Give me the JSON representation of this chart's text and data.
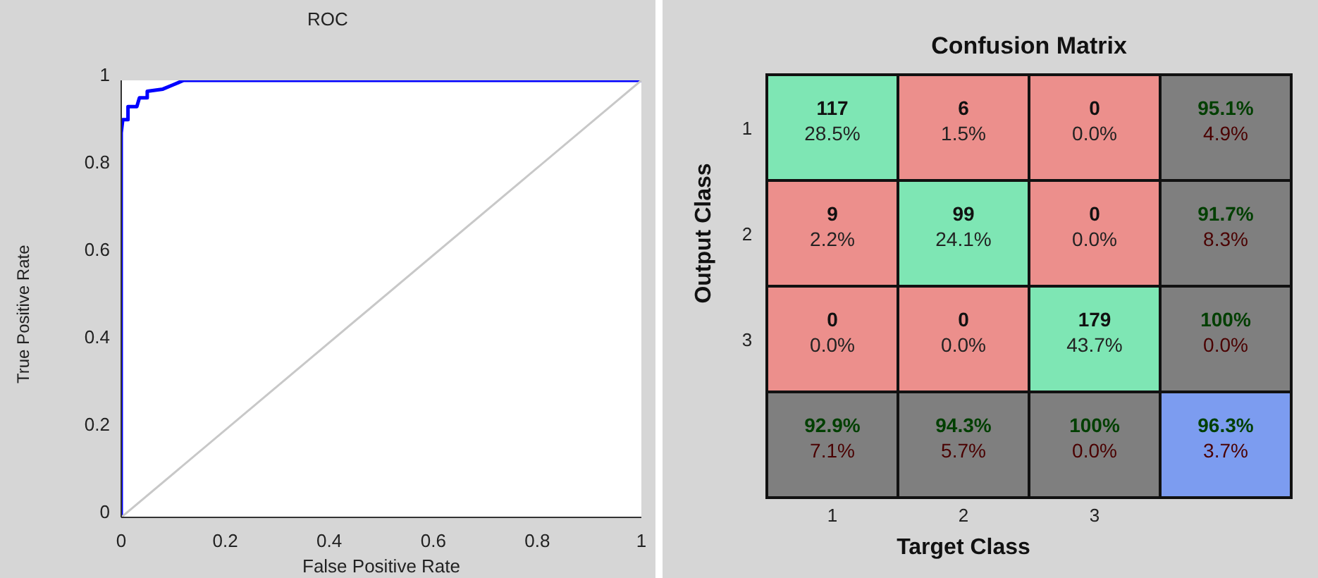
{
  "chart_data": [
    {
      "type": "line",
      "title": "ROC",
      "xlabel": "False Positive Rate",
      "ylabel": "True Positive Rate",
      "xlim": [
        0,
        1
      ],
      "ylim": [
        0,
        1
      ],
      "xticks": [
        0,
        0.2,
        0.4,
        0.6,
        0.8,
        1
      ],
      "yticks": [
        0,
        0.2,
        0.4,
        0.6,
        0.8,
        1
      ],
      "grid": false,
      "marker": "none",
      "line_style": "solid",
      "series": [
        {
          "color": "#0000ff",
          "x": [
            0,
            0,
            0,
            0.003,
            0.013,
            0.013,
            0.03,
            0.035,
            0.05,
            0.05,
            0.08,
            0.1,
            0.12,
            1
          ],
          "values": [
            0,
            0.77,
            0.88,
            0.91,
            0.91,
            0.94,
            0.94,
            0.96,
            0.96,
            0.975,
            0.98,
            0.99,
            1,
            1
          ]
        },
        {
          "color": "#c8c8c8",
          "x": [
            0,
            1
          ],
          "values": [
            0,
            1
          ]
        }
      ]
    },
    {
      "type": "heatmap",
      "title": "Confusion Matrix",
      "xlabel": "Target Class",
      "ylabel": "Output Class",
      "categories": [
        "1",
        "2",
        "3",
        null
      ],
      "y_categories": [
        "1",
        "2",
        "3",
        null
      ],
      "cells": [
        [
          117,
          6,
          0,
          95.1
        ],
        [
          9,
          99,
          0,
          91.7
        ],
        [
          0,
          0,
          179,
          100
        ],
        [
          92.9,
          94.3,
          100,
          96.3
        ]
      ],
      "cell_labels": [
        [
          "117",
          "6",
          "0",
          "95.1%"
        ],
        [
          "9",
          "99",
          "0",
          "91.7%"
        ],
        [
          "0",
          "0",
          "179",
          "100%"
        ],
        [
          "92.9%",
          "94.3%",
          "100%",
          "96.3%"
        ]
      ],
      "annotations": [
        "28.5%",
        "1.5%",
        "0.0%",
        "4.9%",
        "2.2%",
        "24.1%",
        "0.0%",
        "8.3%",
        "0.0%",
        "0.0%",
        "43.7%",
        "0.0%",
        "7.1%",
        "5.7%",
        "0.0%",
        "3.7%"
      ],
      "colors": [
        [
          "#7ee6b4",
          "#ec8f8c",
          "#ec8f8c",
          "#7f7f7f"
        ],
        [
          "#ec8f8c",
          "#7ee6b4",
          "#ec8f8c",
          "#7f7f7f"
        ],
        [
          "#ec8f8c",
          "#ec8f8c",
          "#7ee6b4",
          "#7f7f7f"
        ],
        [
          "#7f7f7f",
          "#7f7f7f",
          "#7f7f7f",
          "#7c9cf0"
        ]
      ]
    }
  ]
}
